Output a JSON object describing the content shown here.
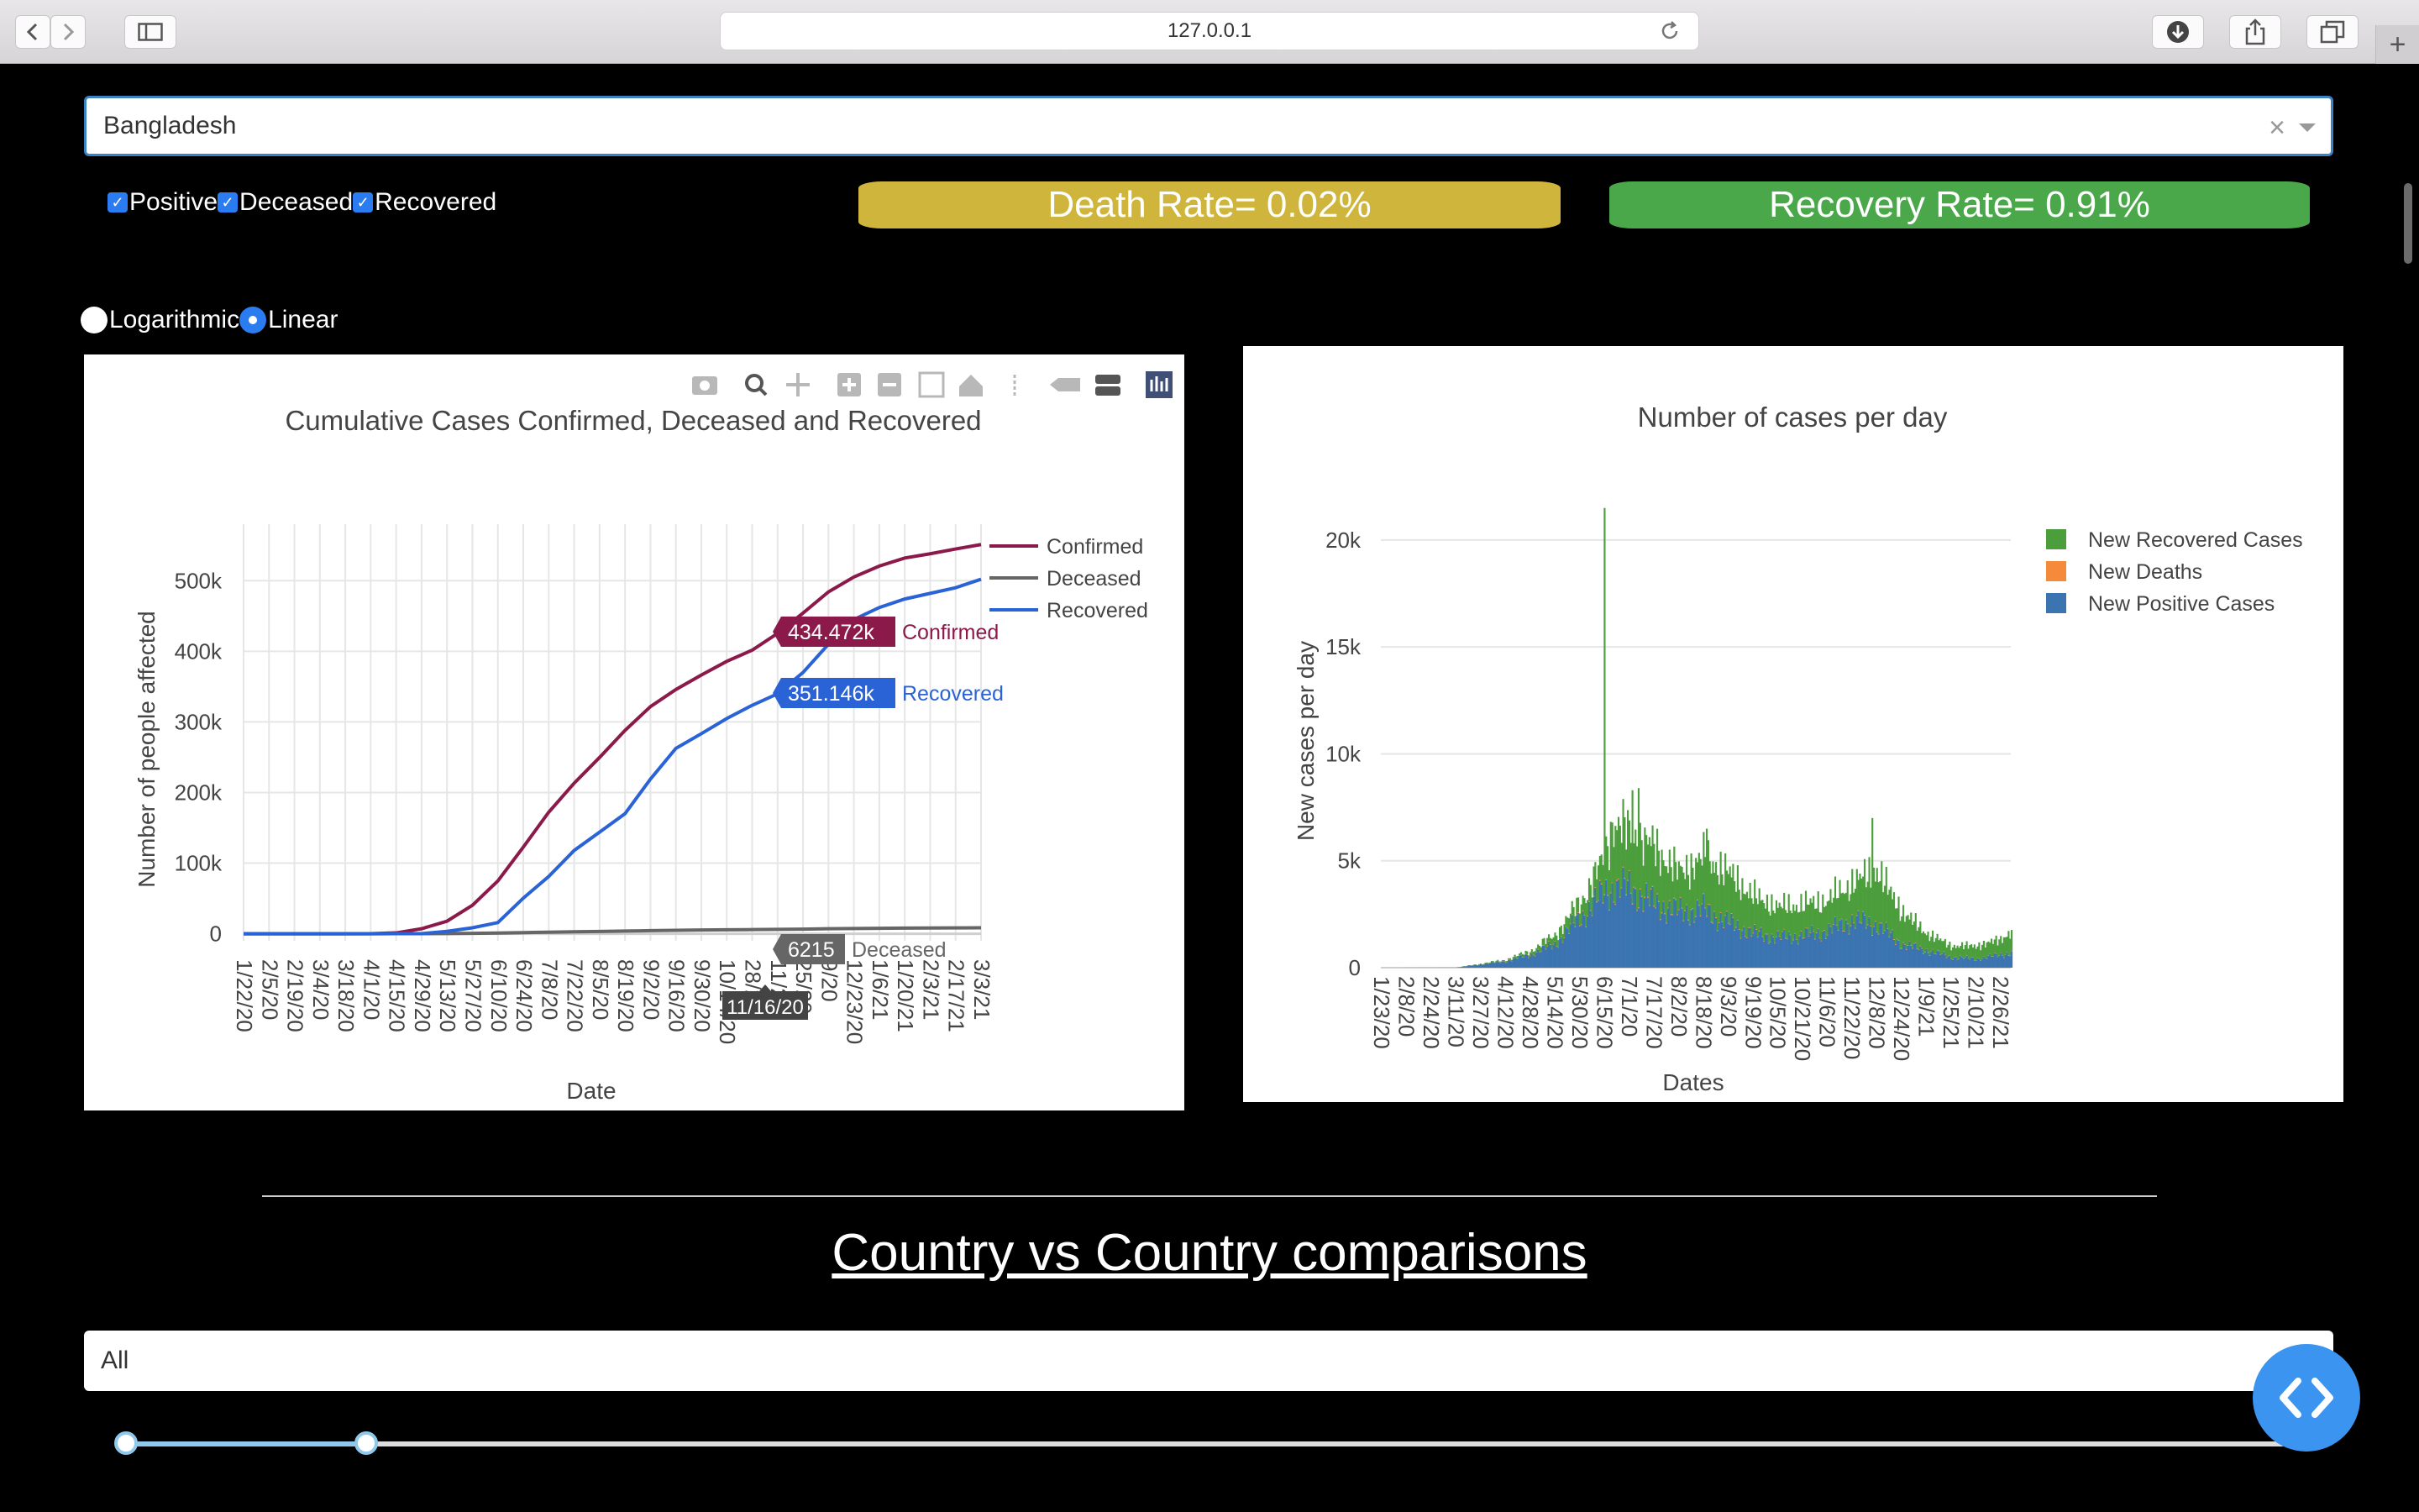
{
  "browser": {
    "url": "127.0.0.1"
  },
  "controls": {
    "country_value": "Bangladesh",
    "clear_glyph": "×",
    "checkboxes": [
      {
        "label": "Positive",
        "checked": true
      },
      {
        "label": "Deceased",
        "checked": true
      },
      {
        "label": "Recovered",
        "checked": true
      }
    ],
    "death_rate": "Death Rate= 0.02%",
    "recovery_rate": "Recovery Rate= 0.91%",
    "scale_options": [
      {
        "label": "Logarithmic",
        "selected": false
      },
      {
        "label": "Linear",
        "selected": true
      }
    ]
  },
  "chart_data": [
    {
      "type": "line",
      "title": "Cumulative Cases Confirmed, Deceased and Recovered",
      "xlabel": "Date",
      "ylabel": "Number of people affected",
      "x_ticks": [
        "1/22/20",
        "2/5/20",
        "2/19/20",
        "3/4/20",
        "3/18/20",
        "4/1/20",
        "4/15/20",
        "4/29/20",
        "5/13/20",
        "5/27/20",
        "6/10/20",
        "6/24/20",
        "7/8/20",
        "7/22/20",
        "8/5/20",
        "8/19/20",
        "9/2/20",
        "9/16/20",
        "9/30/20",
        "10/14/20",
        "10/28/20",
        "11/11/20",
        "11/25/20",
        "12/9/20",
        "12/23/20",
        "1/6/21",
        "1/20/21",
        "2/3/21",
        "2/17/21",
        "3/3/21"
      ],
      "x_tick_labels_shown": [
        "1/22/20",
        "2/5/20",
        "2/19/20",
        "3/4/20",
        "3/18/20",
        "4/1/20",
        "4/15/20",
        "4/29/20",
        "5/13/20",
        "5/27/20",
        "6/10/20",
        "6/24/20",
        "7/8/20",
        "7/22/20",
        "8/5/20",
        "8/19/20",
        "9/2/20",
        "9/16/20",
        "9/30/20",
        "10/14/20",
        "28/20",
        "11/20",
        "25/20",
        "9/20",
        "12/23/20",
        "1/6/21",
        "1/20/21",
        "2/3/21",
        "2/17/21",
        "3/3/21"
      ],
      "y_ticks": [
        0,
        100000,
        200000,
        300000,
        400000,
        500000
      ],
      "y_tick_labels": [
        "0",
        "100k",
        "200k",
        "300k",
        "400k",
        "500k"
      ],
      "ylim": [
        -10000,
        580000
      ],
      "series": [
        {
          "name": "Confirmed",
          "color": "#8b1a4a",
          "values": [
            0,
            0,
            0,
            0,
            0,
            51,
            1231,
            7103,
            17822,
            40321,
            74865,
            122660,
            172134,
            213254,
            249651,
            287959,
            321615,
            345805,
            366383,
            385725,
            401586,
            425353,
            454146,
            484104,
            505222,
            520690,
            532030,
            538062,
            544843,
            551175
          ]
        },
        {
          "name": "Deceased",
          "color": "#666666",
          "values": [
            0,
            0,
            0,
            0,
            0,
            6,
            50,
            155,
            269,
            544,
            1012,
            1582,
            2197,
            2751,
            3306,
            3822,
            4412,
            4859,
            5272,
            5646,
            5866,
            6140,
            6487,
            7052,
            7452,
            7756,
            8003,
            8181,
            8320,
            8408
          ]
        },
        {
          "name": "Recovered",
          "color": "#2a63d6",
          "values": [
            0,
            0,
            0,
            0,
            0,
            26,
            42,
            177,
            3361,
            8425,
            15811,
            50412,
            81125,
            117925,
            143824,
            170021,
            219000,
            262512,
            283298,
            304754,
            323474,
            339768,
            370000,
            410000,
            445000,
            462000,
            474000,
            482000,
            490000,
            502000
          ]
        }
      ],
      "hover_x": "11/16/20",
      "hover_labels": [
        {
          "value": "434.472k",
          "name": "Confirmed"
        },
        {
          "value": "351.146k",
          "name": "Recovered"
        },
        {
          "value": "6215",
          "name": "Deceased"
        }
      ],
      "legend_position": "top-right"
    },
    {
      "type": "bar",
      "stacked": true,
      "title": "Number of cases per day",
      "xlabel": "Dates",
      "ylabel": "New cases per day",
      "x_ticks": [
        "1/23/20",
        "2/8/20",
        "2/24/20",
        "3/11/20",
        "3/27/20",
        "4/12/20",
        "4/28/20",
        "5/14/20",
        "5/30/20",
        "6/15/20",
        "7/1/20",
        "7/17/20",
        "8/2/20",
        "8/18/20",
        "9/3/20",
        "9/19/20",
        "10/5/20",
        "10/21/20",
        "11/6/20",
        "11/22/20",
        "12/8/20",
        "12/24/20",
        "1/9/21",
        "1/25/21",
        "2/10/21",
        "2/26/21"
      ],
      "y_ticks": [
        0,
        5000,
        10000,
        15000,
        20000
      ],
      "y_tick_labels": [
        "0",
        "5k",
        "10k",
        "15k",
        "20k"
      ],
      "ylim": [
        0,
        22000
      ],
      "period_points": [
        {
          "date": "1/23/20",
          "positive": 0,
          "deaths": 0,
          "recovered": 0
        },
        {
          "date": "3/11/20",
          "positive": 5,
          "deaths": 0,
          "recovered": 0
        },
        {
          "date": "4/12/20",
          "positive": 300,
          "deaths": 10,
          "recovered": 50
        },
        {
          "date": "4/28/20",
          "positive": 600,
          "deaths": 15,
          "recovered": 150
        },
        {
          "date": "5/14/20",
          "positive": 1100,
          "deaths": 20,
          "recovered": 400
        },
        {
          "date": "5/30/20",
          "positive": 2300,
          "deaths": 30,
          "recovered": 700
        },
        {
          "date": "6/15/20",
          "positive": 3500,
          "deaths": 40,
          "recovered": 1500
        },
        {
          "date": "6/20/20",
          "positive": 3700,
          "deaths": 40,
          "recovered": 3000
        },
        {
          "date": "7/1/20",
          "positive": 3700,
          "deaths": 40,
          "recovered": 2600
        },
        {
          "date": "7/17/20",
          "positive": 3000,
          "deaths": 40,
          "recovered": 2600
        },
        {
          "date": "8/2/20",
          "positive": 2600,
          "deaths": 35,
          "recovered": 1800
        },
        {
          "date": "8/18/20",
          "positive": 2700,
          "deaths": 35,
          "recovered": 2400
        },
        {
          "date": "9/3/20",
          "positive": 2100,
          "deaths": 30,
          "recovered": 2300
        },
        {
          "date": "9/19/20",
          "positive": 1600,
          "deaths": 25,
          "recovered": 1700
        },
        {
          "date": "10/5/20",
          "positive": 1400,
          "deaths": 22,
          "recovered": 1400
        },
        {
          "date": "10/21/20",
          "positive": 1500,
          "deaths": 20,
          "recovered": 1400
        },
        {
          "date": "11/6/20",
          "positive": 1700,
          "deaths": 22,
          "recovered": 1400
        },
        {
          "date": "11/22/20",
          "positive": 2200,
          "deaths": 30,
          "recovered": 1700
        },
        {
          "date": "12/8/20",
          "positive": 2000,
          "deaths": 30,
          "recovered": 2500
        },
        {
          "date": "12/24/20",
          "positive": 1100,
          "deaths": 25,
          "recovered": 1500
        },
        {
          "date": "1/9/21",
          "positive": 800,
          "deaths": 18,
          "recovered": 800
        },
        {
          "date": "1/25/21",
          "positive": 500,
          "deaths": 15,
          "recovered": 500
        },
        {
          "date": "2/10/21",
          "positive": 400,
          "deaths": 10,
          "recovered": 600
        },
        {
          "date": "2/26/21",
          "positive": 600,
          "deaths": 12,
          "recovered": 700
        },
        {
          "date": "3/5/21",
          "positive": 700,
          "deaths": 15,
          "recovered": 1000
        }
      ],
      "spikes": [
        {
          "date": "6/15/20",
          "recovered_total": 21500
        },
        {
          "date": "7/3/20",
          "recovered_total": 8300
        },
        {
          "date": "7/7/20",
          "recovered_total": 8400
        },
        {
          "date": "8/20/20",
          "recovered_total": 6500
        },
        {
          "date": "12/5/20",
          "recovered_total": 7000
        }
      ],
      "series": [
        {
          "name": "New Recovered Cases",
          "color": "#4c9e3c"
        },
        {
          "name": "New Deaths",
          "color": "#f58a3a"
        },
        {
          "name": "New Positive Cases",
          "color": "#3b74b0"
        }
      ],
      "legend_position": "top-right"
    }
  ],
  "comparison": {
    "title": "Country vs Country comparisons",
    "select_value": "All"
  }
}
